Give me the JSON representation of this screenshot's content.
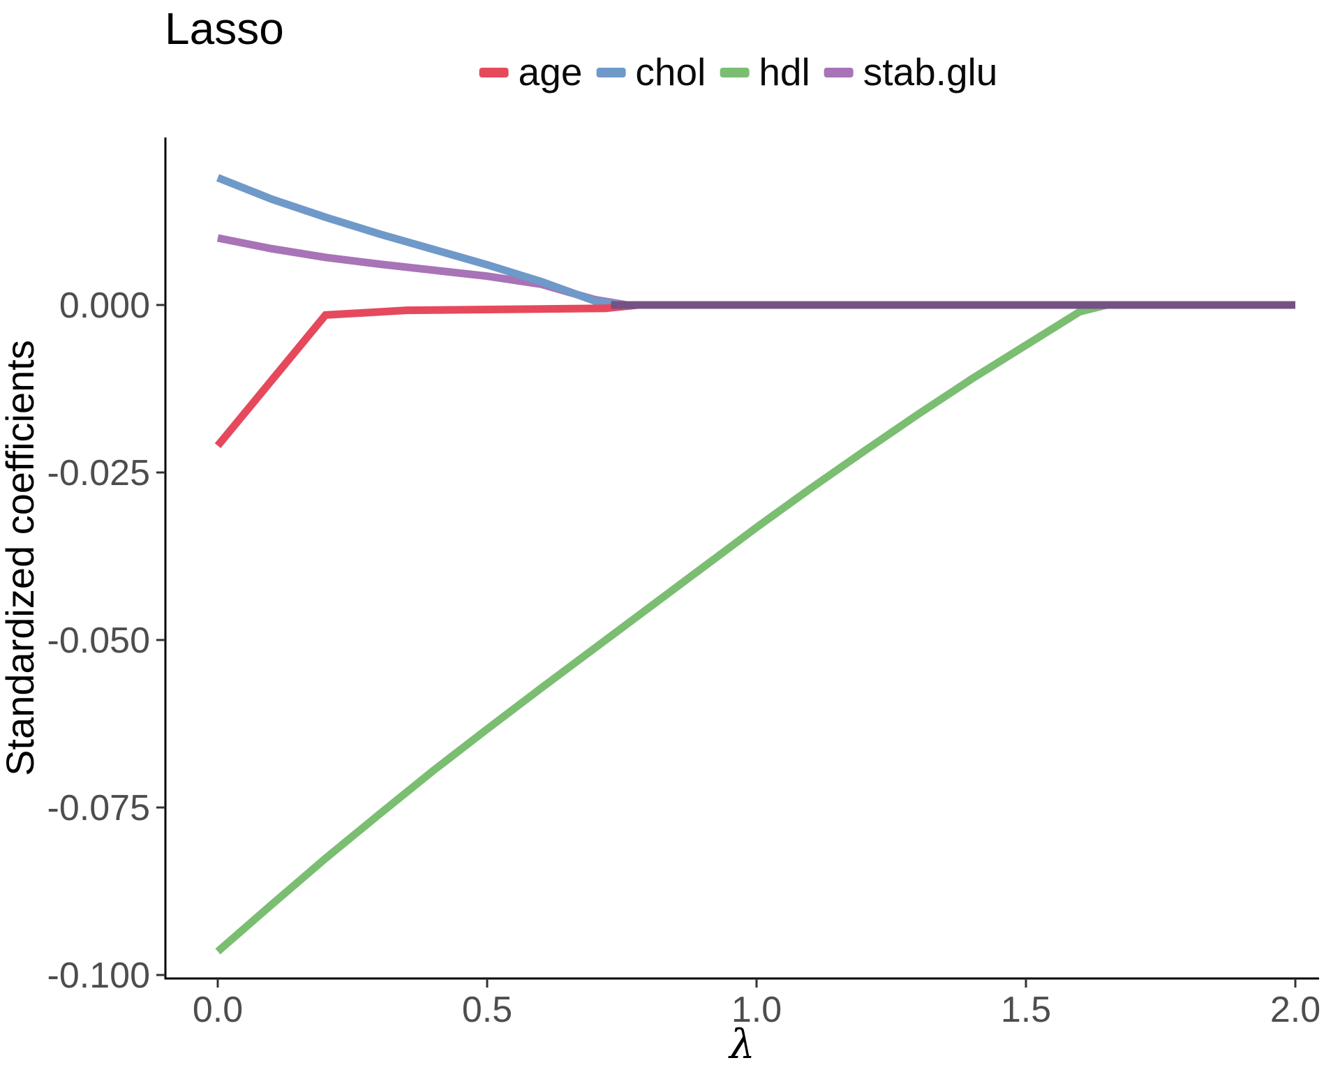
{
  "chart_data": {
    "type": "line",
    "title": "Lasso",
    "xlabel": "λ",
    "ylabel": "Standardized coefficients",
    "xlim": [
      0.0,
      2.0
    ],
    "ylim": [
      -0.1,
      0.025
    ],
    "grid": "off",
    "legend_position": "top-center-horizontal",
    "x_ticks": [
      0.0,
      0.5,
      1.0,
      1.5,
      2.0
    ],
    "x_tick_labels": [
      "0.0",
      "0.5",
      "1.0",
      "1.5",
      "2.0"
    ],
    "y_ticks": [
      0.0,
      -0.025,
      -0.05,
      -0.075,
      -0.1
    ],
    "y_tick_labels": [
      "0.000",
      "-0.025",
      "-0.050",
      "-0.075",
      "-0.100"
    ],
    "series": [
      {
        "name": "age",
        "color": "#E6495B",
        "x": [
          0.0,
          0.2,
          0.35,
          0.72,
          0.78,
          2.0
        ],
        "y": [
          -0.021,
          -0.0015,
          -0.0008,
          -0.0005,
          0.0,
          0.0
        ]
      },
      {
        "name": "chol",
        "color": "#6F99C8",
        "x": [
          0.0,
          0.1,
          0.2,
          0.3,
          0.4,
          0.5,
          0.6,
          0.7,
          0.75,
          2.0
        ],
        "y": [
          0.019,
          0.0158,
          0.0131,
          0.0106,
          0.0083,
          0.006,
          0.0035,
          0.0006,
          0.0,
          0.0
        ]
      },
      {
        "name": "hdl",
        "color": "#7BBE72",
        "x": [
          0.0,
          0.1,
          0.2,
          0.3,
          0.4,
          0.5,
          0.6,
          0.7,
          0.8,
          0.9,
          1.0,
          1.1,
          1.2,
          1.3,
          1.4,
          1.5,
          1.55,
          1.6,
          1.65,
          2.0
        ],
        "y": [
          -0.0965,
          -0.0895,
          -0.0826,
          -0.076,
          -0.0695,
          -0.0633,
          -0.0572,
          -0.0512,
          -0.0452,
          -0.0392,
          -0.0332,
          -0.0274,
          -0.0218,
          -0.0163,
          -0.011,
          -0.006,
          -0.0035,
          -0.001,
          0.0,
          0.0
        ]
      },
      {
        "name": "stab.glu",
        "color": "#A973B7",
        "x": [
          0.0,
          0.1,
          0.2,
          0.3,
          0.4,
          0.5,
          0.6,
          0.7,
          0.76,
          2.0
        ],
        "y": [
          0.01,
          0.0084,
          0.0071,
          0.0061,
          0.0052,
          0.0043,
          0.0031,
          0.0008,
          0.0,
          0.0
        ]
      }
    ],
    "merged_zero_line": {
      "comment_color_semantics": "overlapped-paths-at-zero",
      "color": "#745285",
      "x_from": 0.73,
      "x_to": 2.0,
      "y": 0.0
    },
    "annotations": []
  },
  "styles": {
    "axis_line_color": "#000000",
    "tick_color": "#333333",
    "tick_label_color": "#4d4d4d",
    "title_color": "#000000"
  }
}
